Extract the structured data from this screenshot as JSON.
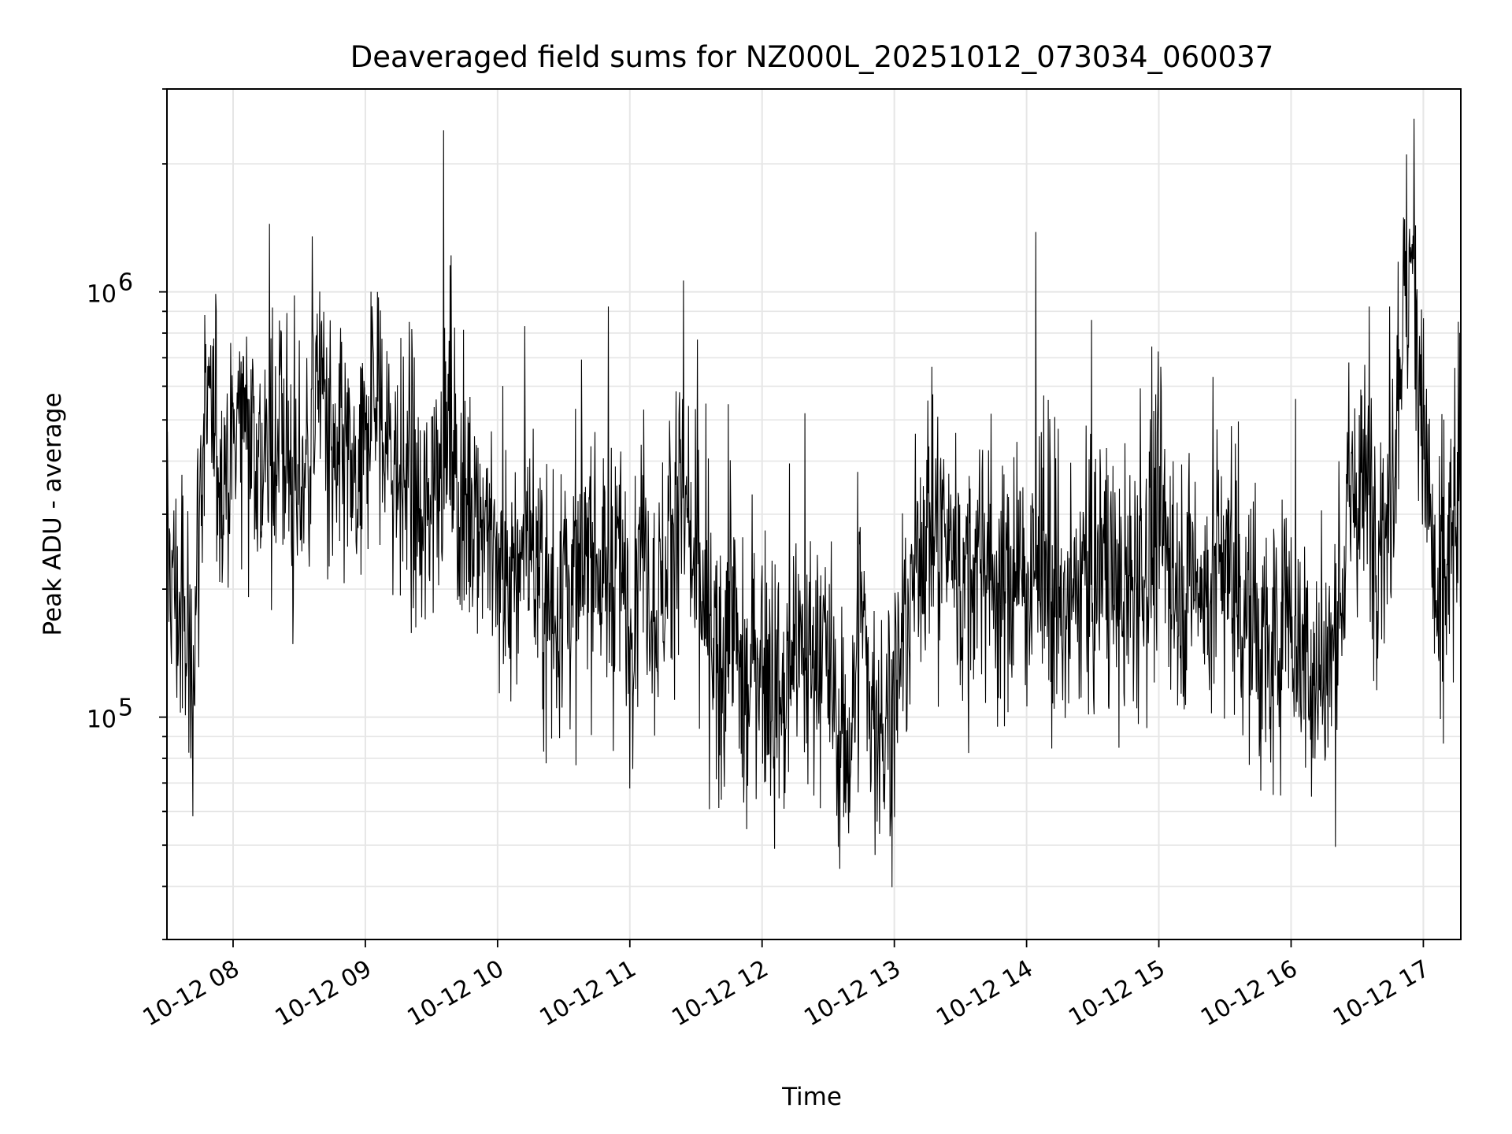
{
  "chart_data": {
    "type": "line",
    "title": "Deaveraged field sums for NZ000L_20251012_073034_060037",
    "xlabel": "Time",
    "ylabel": "Peak ADU - average",
    "y_scale": "log",
    "ylim": [
      30000,
      3000000
    ],
    "xlim": [
      "2025-10-12 07:30",
      "2025-10-12 17:17"
    ],
    "grid": true,
    "grid_color": "#e6e6e6",
    "line_color": "#000000",
    "x_ticks": [
      {
        "time": "2025-10-12 08:00",
        "label": "10-12 08"
      },
      {
        "time": "2025-10-12 09:00",
        "label": "10-12 09"
      },
      {
        "time": "2025-10-12 10:00",
        "label": "10-12 10"
      },
      {
        "time": "2025-10-12 11:00",
        "label": "10-12 11"
      },
      {
        "time": "2025-10-12 12:00",
        "label": "10-12 12"
      },
      {
        "time": "2025-10-12 13:00",
        "label": "10-12 13"
      },
      {
        "time": "2025-10-12 14:00",
        "label": "10-12 14"
      },
      {
        "time": "2025-10-12 15:00",
        "label": "10-12 15"
      },
      {
        "time": "2025-10-12 16:00",
        "label": "10-12 16"
      },
      {
        "time": "2025-10-12 17:00",
        "label": "10-12 17"
      }
    ],
    "y_major_ticks": [
      {
        "value": 100000,
        "base": "10",
        "exp": "5"
      },
      {
        "value": 1000000,
        "base": "10",
        "exp": "6"
      }
    ],
    "series": [
      {
        "x": [
          "2025-10-12 07:30",
          "2025-10-12 07:35",
          "2025-10-12 07:41",
          "2025-10-12 07:47",
          "2025-10-12 07:53",
          "2025-10-12 07:59",
          "2025-10-12 08:05",
          "2025-10-12 08:10",
          "2025-10-12 08:16",
          "2025-10-12 08:22",
          "2025-10-12 08:28",
          "2025-10-12 08:34",
          "2025-10-12 08:40",
          "2025-10-12 08:45",
          "2025-10-12 08:51",
          "2025-10-12 08:57",
          "2025-10-12 09:03",
          "2025-10-12 09:09",
          "2025-10-12 09:15",
          "2025-10-12 09:20",
          "2025-10-12 09:26",
          "2025-10-12 09:32",
          "2025-10-12 09:38",
          "2025-10-12 09:44",
          "2025-10-12 09:50",
          "2025-10-12 09:55",
          "2025-10-12 10:01",
          "2025-10-12 10:07",
          "2025-10-12 10:13",
          "2025-10-12 10:19",
          "2025-10-12 10:25",
          "2025-10-12 10:30",
          "2025-10-12 10:36",
          "2025-10-12 10:42",
          "2025-10-12 10:48",
          "2025-10-12 10:54",
          "2025-10-12 11:00",
          "2025-10-12 11:05",
          "2025-10-12 11:11",
          "2025-10-12 11:17",
          "2025-10-12 11:23",
          "2025-10-12 11:29",
          "2025-10-12 11:35",
          "2025-10-12 11:40",
          "2025-10-12 11:46",
          "2025-10-12 11:52",
          "2025-10-12 11:58",
          "2025-10-12 12:04",
          "2025-10-12 12:10",
          "2025-10-12 12:15",
          "2025-10-12 12:21",
          "2025-10-12 12:27",
          "2025-10-12 12:33",
          "2025-10-12 12:39",
          "2025-10-12 12:45",
          "2025-10-12 12:50",
          "2025-10-12 12:56",
          "2025-10-12 13:02",
          "2025-10-12 13:08",
          "2025-10-12 13:14",
          "2025-10-12 13:20",
          "2025-10-12 13:25",
          "2025-10-12 13:31",
          "2025-10-12 13:37",
          "2025-10-12 13:43",
          "2025-10-12 13:49",
          "2025-10-12 13:55",
          "2025-10-12 14:00",
          "2025-10-12 14:06",
          "2025-10-12 14:12",
          "2025-10-12 14:18",
          "2025-10-12 14:24",
          "2025-10-12 14:30",
          "2025-10-12 14:35",
          "2025-10-12 14:41",
          "2025-10-12 14:47",
          "2025-10-12 14:53",
          "2025-10-12 14:59",
          "2025-10-12 15:05",
          "2025-10-12 15:10",
          "2025-10-12 15:16",
          "2025-10-12 15:22",
          "2025-10-12 15:28",
          "2025-10-12 15:34",
          "2025-10-12 15:40",
          "2025-10-12 15:45",
          "2025-10-12 15:51",
          "2025-10-12 15:57",
          "2025-10-12 16:03",
          "2025-10-12 16:09",
          "2025-10-12 16:15",
          "2025-10-12 16:20",
          "2025-10-12 16:26",
          "2025-10-12 16:32",
          "2025-10-12 16:38",
          "2025-10-12 16:44",
          "2025-10-12 16:50",
          "2025-10-12 16:55",
          "2025-10-12 17:01",
          "2025-10-12 17:07",
          "2025-10-12 17:13"
        ],
        "y": [
          250000,
          180000,
          120000,
          520000,
          420000,
          380000,
          600000,
          450000,
          350000,
          520000,
          300000,
          420000,
          650000,
          350000,
          400000,
          280000,
          600000,
          450000,
          380000,
          330000,
          250000,
          420000,
          500000,
          300000,
          350000,
          280000,
          220000,
          180000,
          300000,
          200000,
          150000,
          220000,
          180000,
          260000,
          200000,
          250000,
          150000,
          300000,
          180000,
          220000,
          350000,
          200000,
          150000,
          120000,
          200000,
          90000,
          150000,
          120000,
          100000,
          150000,
          130000,
          160000,
          100000,
          80000,
          180000,
          100000,
          90000,
          120000,
          200000,
          300000,
          250000,
          280000,
          200000,
          220000,
          250000,
          180000,
          220000,
          200000,
          250000,
          180000,
          160000,
          220000,
          200000,
          260000,
          180000,
          200000,
          220000,
          300000,
          250000,
          200000,
          220000,
          180000,
          250000,
          200000,
          180000,
          150000,
          120000,
          200000,
          150000,
          130000,
          120000,
          150000,
          300000,
          350000,
          300000,
          280000,
          800000,
          1200000,
          400000,
          150000,
          260000
        ]
      }
    ]
  }
}
